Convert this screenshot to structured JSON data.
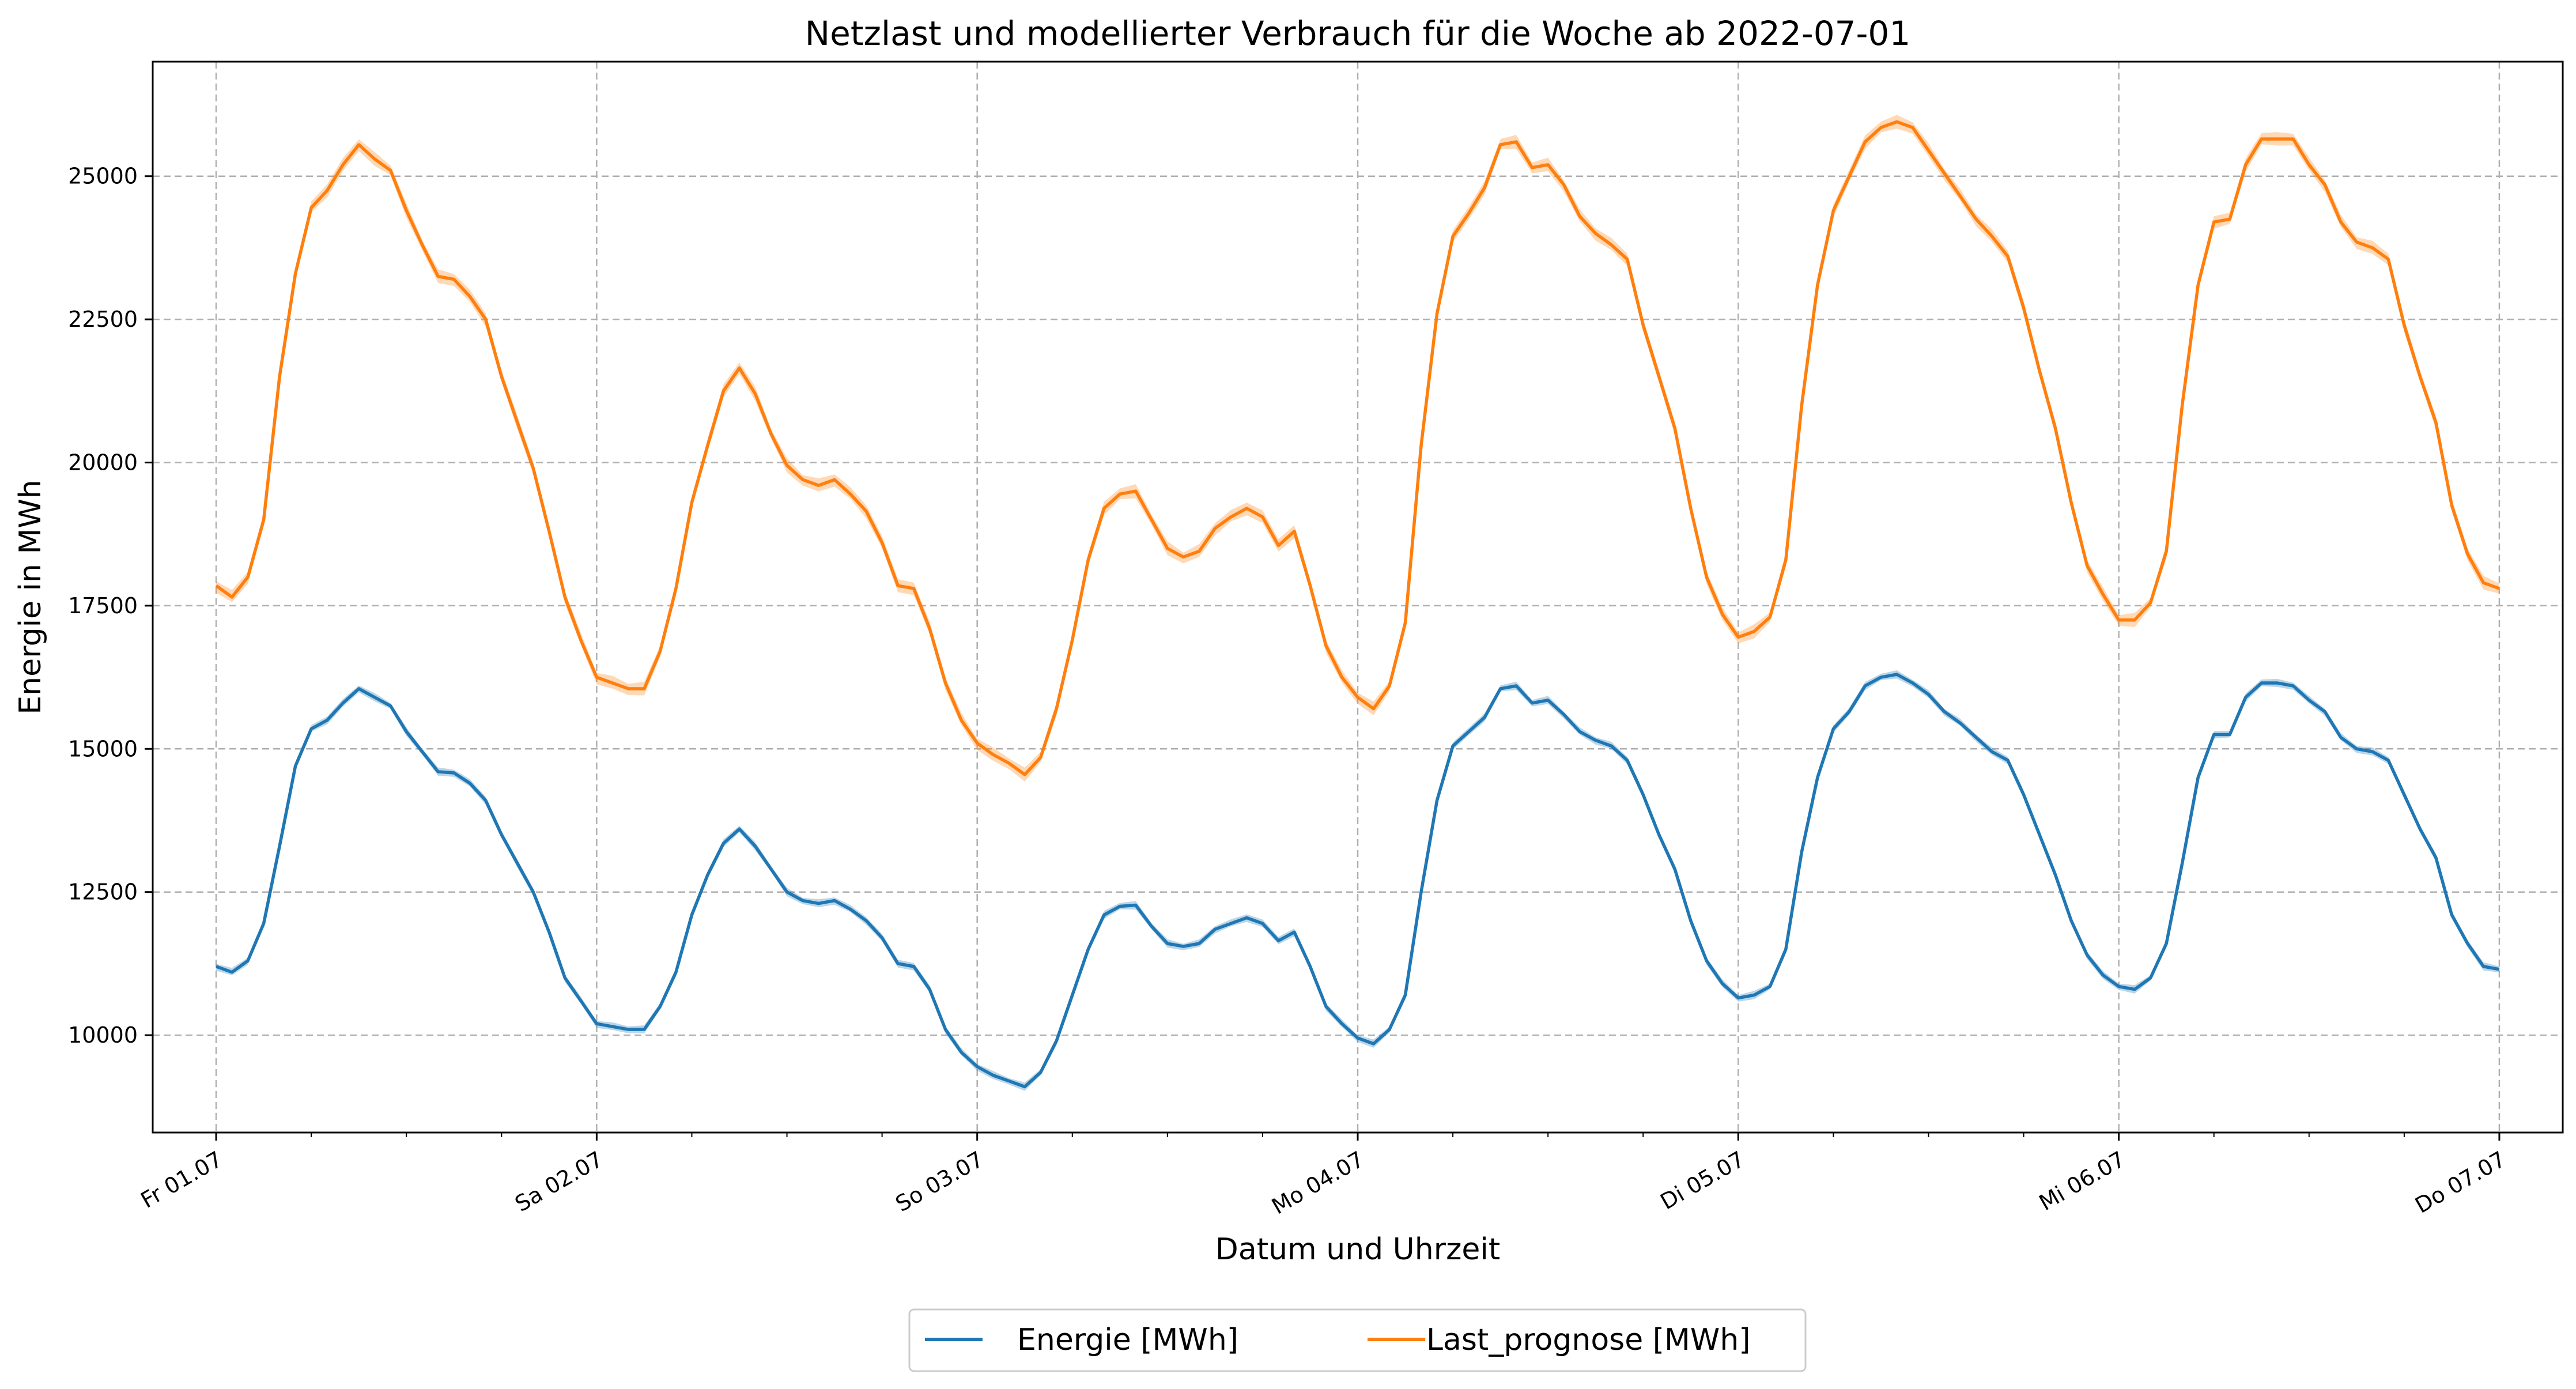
{
  "chart_data": {
    "type": "line",
    "title": "Netzlast und modellierter Verbrauch für die Woche ab 2022-07-01",
    "xlabel": "Datum und Uhrzeit",
    "ylabel": "Energie in MWh",
    "xlim": [
      "2022-06-30T20:00",
      "2022-07-07T04:00"
    ],
    "ylim": [
      8300,
      27000
    ],
    "grid": true,
    "legend": "bottom-center",
    "x_ticks": [
      {
        "date": "2022-07-01",
        "label": "Fr 01.07"
      },
      {
        "date": "2022-07-02",
        "label": "Sa 02.07"
      },
      {
        "date": "2022-07-03",
        "label": "So 03.07"
      },
      {
        "date": "2022-07-04",
        "label": "Mo 04.07"
      },
      {
        "date": "2022-07-05",
        "label": "Di 05.07"
      },
      {
        "date": "2022-07-06",
        "label": "Mi 06.07"
      },
      {
        "date": "2022-07-07",
        "label": "Do 07.07"
      }
    ],
    "y_ticks": [
      10000,
      12500,
      15000,
      17500,
      20000,
      22500,
      25000
    ],
    "x_start": "2022-07-01T00:00",
    "x_step": "1h",
    "series": [
      {
        "name": "Energie [MWh]",
        "color": "#1f77b4",
        "band_width": 150,
        "values": [
          11200,
          11100,
          11300,
          11950,
          13300,
          14700,
          15350,
          15500,
          15800,
          16050,
          15900,
          15750,
          15300,
          14950,
          14600,
          14580,
          14400,
          14100,
          13500,
          13000,
          12500,
          11800,
          11000,
          10600,
          10200,
          10150,
          10100,
          10100,
          10500,
          11100,
          12100,
          12800,
          13350,
          13600,
          13300,
          12900,
          12500,
          12350,
          12300,
          12350,
          12200,
          12000,
          11700,
          11250,
          11200,
          10800,
          10100,
          9700,
          9450,
          9300,
          9200,
          9100,
          9350,
          9900,
          10700,
          11500,
          12100,
          12250,
          12270,
          11900,
          11600,
          11550,
          11600,
          11850,
          11950,
          12050,
          11950,
          11650,
          11800,
          11200,
          10500,
          10200,
          9950,
          9850,
          10100,
          10700,
          12500,
          14100,
          15050,
          15300,
          15550,
          16050,
          16100,
          15800,
          15850,
          15600,
          15300,
          15150,
          15050,
          14800,
          14200,
          13500,
          12900,
          12000,
          11300,
          10900,
          10650,
          10700,
          10850,
          11500,
          13200,
          14500,
          15350,
          15650,
          16100,
          16250,
          16300,
          16150,
          15950,
          15650,
          15450,
          15200,
          14950,
          14800,
          14200,
          13500,
          12800,
          12000,
          11400,
          11050,
          10850,
          10800,
          11000,
          11600,
          13000,
          14500,
          15250,
          15250,
          15900,
          16150,
          16150,
          16100,
          15850,
          15650,
          15200,
          15000,
          14950,
          14800,
          14200,
          13600,
          13100,
          12100,
          11600,
          11200,
          11150
        ]
      },
      {
        "name": "Last_prognose [MWh]",
        "color": "#ff7f0e",
        "band_width": 250,
        "values": [
          17850,
          17650,
          18000,
          19000,
          21500,
          23300,
          24450,
          24750,
          25200,
          25550,
          25300,
          25100,
          24400,
          23800,
          23250,
          23200,
          22900,
          22500,
          21500,
          20700,
          19900,
          18800,
          17650,
          16900,
          16250,
          16150,
          16050,
          16050,
          16700,
          17800,
          19300,
          20300,
          21250,
          21650,
          21200,
          20500,
          19950,
          19700,
          19600,
          19700,
          19450,
          19150,
          18600,
          17850,
          17800,
          17100,
          16150,
          15500,
          15100,
          14900,
          14750,
          14550,
          14850,
          15700,
          16900,
          18300,
          19200,
          19450,
          19500,
          19000,
          18500,
          18350,
          18450,
          18850,
          19050,
          19200,
          19050,
          18550,
          18800,
          17850,
          16800,
          16250,
          15900,
          15700,
          16100,
          17200,
          20300,
          22600,
          23950,
          24350,
          24800,
          25550,
          25600,
          25150,
          25200,
          24850,
          24300,
          24000,
          23800,
          23550,
          22400,
          21500,
          20600,
          19200,
          18000,
          17350,
          16950,
          17050,
          17300,
          18300,
          21000,
          23100,
          24400,
          25000,
          25600,
          25850,
          25950,
          25850,
          25450,
          25050,
          24650,
          24250,
          23950,
          23600,
          22700,
          21600,
          20600,
          19300,
          18200,
          17700,
          17250,
          17250,
          17550,
          18450,
          21000,
          23100,
          24200,
          24250,
          25200,
          25650,
          25650,
          25650,
          25200,
          24850,
          24200,
          23850,
          23750,
          23550,
          22400,
          21500,
          20700,
          19250,
          18400,
          17900,
          17800
        ]
      }
    ]
  }
}
